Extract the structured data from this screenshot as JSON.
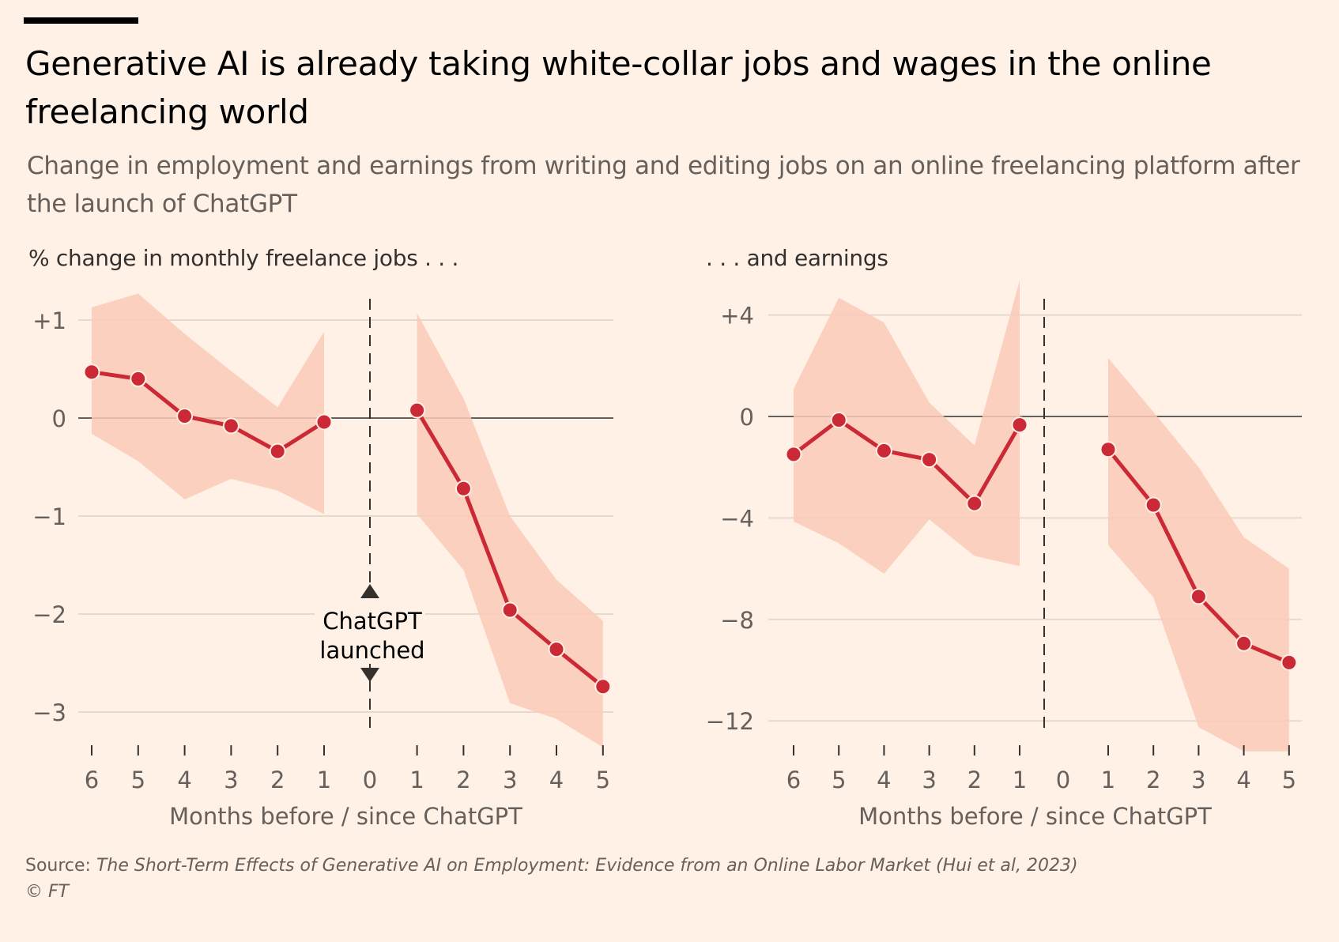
{
  "header": {
    "title": "Generative AI is already taking white-collar jobs and wages in the online freelancing world",
    "subtitle": "Change in employment and earnings from writing and editing jobs on an online freelancing platform after the launch of ChatGPT"
  },
  "footer": {
    "source_prefix": "Source: ",
    "source_text": "The Short-Term Effects of Generative AI on Employment: Evidence from an Online Labor Market (Hui et al, 2023)",
    "copyright": "© FT"
  },
  "colors": {
    "background": "#fff1e5",
    "line": "#cc2936",
    "band": "#fbcab8",
    "grid": "#e6d9ce",
    "zero": "#66605c"
  },
  "chart_data": [
    {
      "type": "line",
      "title": "% change in monthly freelance jobs . . .",
      "xlabel": "Months before / since ChatGPT",
      "ylabel": "",
      "ylim": [
        -3.4,
        1.3
      ],
      "yticks": [
        1,
        0,
        -1,
        -2,
        -3
      ],
      "ytick_labels": [
        "+1",
        "0",
        "−1",
        "−2",
        "−3"
      ],
      "xtick_labels": [
        "6",
        "5",
        "4",
        "3",
        "2",
        "1",
        "0",
        "1",
        "2",
        "3",
        "4",
        "5"
      ],
      "annotation": {
        "line1": "ChatGPT",
        "line2": "launched"
      },
      "grid": true,
      "series": [
        {
          "name": "before",
          "x": [
            -6,
            -5,
            -4,
            -3,
            -2,
            -1
          ],
          "values": [
            0.47,
            0.4,
            0.02,
            -0.08,
            -0.34,
            -0.04
          ],
          "upper": [
            1.13,
            1.27,
            0.86,
            0.48,
            0.11,
            0.88
          ],
          "lower": [
            -0.16,
            -0.44,
            -0.83,
            -0.62,
            -0.74,
            -0.98
          ]
        },
        {
          "name": "after",
          "x": [
            1,
            2,
            3,
            4,
            5
          ],
          "values": [
            0.08,
            -0.72,
            -1.96,
            -2.36,
            -2.74
          ],
          "upper": [
            1.07,
            0.2,
            -1.0,
            -1.65,
            -2.07
          ],
          "lower": [
            -0.98,
            -1.55,
            -2.91,
            -3.07,
            -3.36
          ]
        }
      ]
    },
    {
      "type": "line",
      "title": ". . . and earnings",
      "xlabel": "Months before / since ChatGPT",
      "ylabel": "",
      "ylim": [
        -13.2,
        5.4
      ],
      "yticks": [
        4,
        0,
        -4,
        -8,
        -12
      ],
      "ytick_labels": [
        "+4",
        "0",
        "−4",
        "−8",
        "−12"
      ],
      "xtick_labels": [
        "6",
        "5",
        "4",
        "3",
        "2",
        "1",
        "0",
        "1",
        "2",
        "3",
        "4",
        "5"
      ],
      "grid": true,
      "series": [
        {
          "name": "before",
          "x": [
            -6,
            -5,
            -4,
            -3,
            -2,
            -1
          ],
          "values": [
            -1.49,
            -0.14,
            -1.35,
            -1.7,
            -3.43,
            -0.33
          ],
          "upper": [
            1.08,
            4.68,
            3.7,
            0.55,
            -1.14,
            5.36
          ],
          "lower": [
            -4.14,
            -5.0,
            -6.2,
            -4.06,
            -5.5,
            -5.9
          ]
        },
        {
          "name": "after",
          "x": [
            1,
            2,
            3,
            4,
            5
          ],
          "values": [
            -1.3,
            -3.49,
            -7.1,
            -8.95,
            -9.7
          ],
          "upper": [
            2.3,
            0.18,
            -2.0,
            -4.76,
            -6.0
          ],
          "lower": [
            -5.07,
            -7.13,
            -12.25,
            -13.2,
            -13.2
          ]
        }
      ]
    }
  ]
}
